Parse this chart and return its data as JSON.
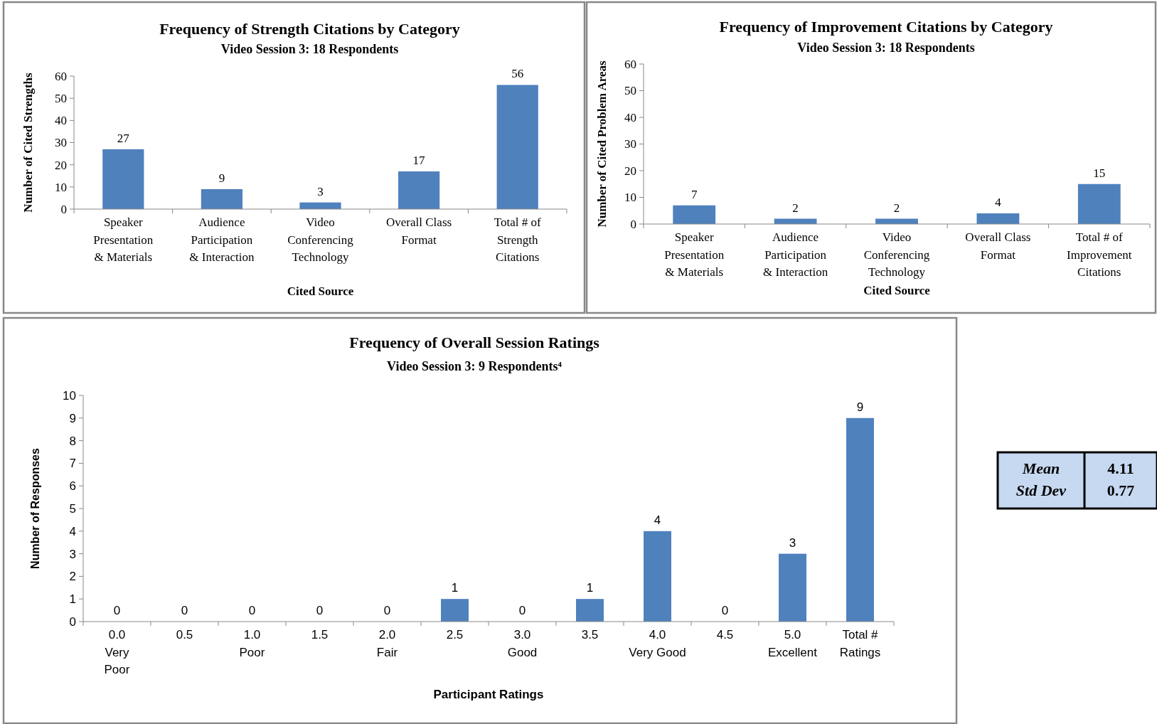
{
  "chart_data": [
    {
      "type": "bar",
      "title": "Frequency of Strength Citations by Category",
      "subtitle": "Video Session 3: 18 Respondents",
      "xlabel": "Cited Source",
      "ylabel": "Number of Cited Strengths",
      "categories": [
        "Speaker\nPresentation\n& Materials",
        "Audience\nParticipation\n& Interaction",
        "Video\nConferencing\nTechnology",
        "Overall Class\nFormat",
        "Total # of\nStrength\nCitations"
      ],
      "values": [
        27,
        9,
        3,
        17,
        56
      ],
      "color": "#4f81bd",
      "ylim": [
        0,
        60
      ],
      "yticks": [
        0,
        10,
        20,
        30,
        40,
        50,
        60
      ],
      "data_labels": true,
      "grid": false
    },
    {
      "type": "bar",
      "title": "Frequency of  Improvement Citations by Category",
      "subtitle": "Video Session 3: 18 Respondents",
      "xlabel": "Cited Source",
      "ylabel": "Number of Cited Problem Areas",
      "categories": [
        "Speaker\nPresentation\n& Materials",
        "Audience\nParticipation\n& Interaction",
        "Video\nConferencing\nTechnology",
        "Overall Class\nFormat",
        "Total # of\nImprovement\nCitations"
      ],
      "values": [
        7,
        2,
        2,
        4,
        15
      ],
      "color": "#4f81bd",
      "ylim": [
        0,
        60
      ],
      "yticks": [
        0,
        10,
        20,
        30,
        40,
        50,
        60
      ],
      "data_labels": true,
      "grid": false
    },
    {
      "type": "bar",
      "title": "Frequency of Overall Session Ratings",
      "subtitle": "Video Session 3: 9 Respondents⁴",
      "xlabel": "Participant Ratings",
      "ylabel": "Number of Responses",
      "categories": [
        "0.0\nVery\nPoor",
        "0.5",
        "1.0\nPoor",
        "1.5",
        "2.0\nFair",
        "2.5",
        "3.0\nGood",
        "3.5",
        "4.0\nVery Good",
        "4.5",
        "5.0\nExcellent",
        "Total #\nRatings"
      ],
      "values": [
        0,
        0,
        0,
        0,
        0,
        1,
        0,
        1,
        4,
        0,
        3,
        9
      ],
      "color": "#4f81bd",
      "ylim": [
        0,
        10
      ],
      "yticks": [
        0,
        1,
        2,
        3,
        4,
        5,
        6,
        7,
        8,
        9,
        10
      ],
      "data_labels": true,
      "grid": false
    },
    {
      "type": "other",
      "annotations": [
        "Mean",
        "4.11",
        "Std Dev",
        "0.77"
      ]
    }
  ]
}
